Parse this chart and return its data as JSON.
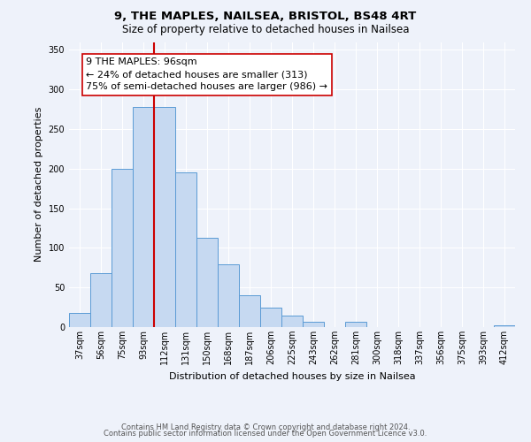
{
  "title1": "9, THE MAPLES, NAILSEA, BRISTOL, BS48 4RT",
  "title2": "Size of property relative to detached houses in Nailsea",
  "xlabel": "Distribution of detached houses by size in Nailsea",
  "ylabel": "Number of detached properties",
  "bar_labels": [
    "37sqm",
    "56sqm",
    "75sqm",
    "93sqm",
    "112sqm",
    "131sqm",
    "150sqm",
    "168sqm",
    "187sqm",
    "206sqm",
    "225sqm",
    "243sqm",
    "262sqm",
    "281sqm",
    "300sqm",
    "318sqm",
    "337sqm",
    "356sqm",
    "375sqm",
    "393sqm",
    "412sqm"
  ],
  "bar_values": [
    18,
    68,
    200,
    278,
    278,
    195,
    113,
    79,
    40,
    25,
    14,
    7,
    0,
    7,
    0,
    0,
    0,
    0,
    0,
    0,
    2
  ],
  "bar_color": "#c6d9f1",
  "bar_edge_color": "#5b9bd5",
  "vline_x_pos": 3.5,
  "vline_color": "#cc0000",
  "annotation_title": "9 THE MAPLES: 96sqm",
  "annotation_line1": "← 24% of detached houses are smaller (313)",
  "annotation_line2": "75% of semi-detached houses are larger (986) →",
  "annotation_box_color": "#ffffff",
  "annotation_box_edge": "#cc0000",
  "ylim": [
    0,
    360
  ],
  "yticks": [
    0,
    50,
    100,
    150,
    200,
    250,
    300,
    350
  ],
  "footer1": "Contains HM Land Registry data © Crown copyright and database right 2024.",
  "footer2": "Contains public sector information licensed under the Open Government Licence v3.0.",
  "bg_color": "#eef2fa",
  "title_fontsize": 9.5,
  "subtitle_fontsize": 8.5,
  "ylabel_fontsize": 8,
  "xlabel_fontsize": 8,
  "tick_fontsize": 7,
  "footer_fontsize": 6,
  "annot_fontsize": 8
}
